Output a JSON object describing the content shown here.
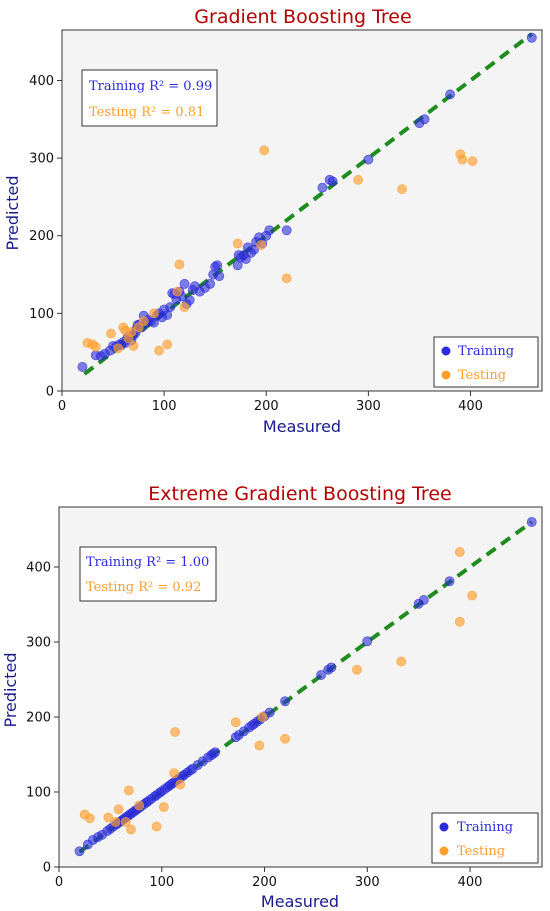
{
  "chart_data": [
    {
      "type": "scatter",
      "title": "Gradient Boosting Tree",
      "xlabel": "Measured",
      "ylabel": "Predicted",
      "xlim": [
        0,
        470
      ],
      "ylim": [
        0,
        465
      ],
      "xticks": [
        "0",
        "100",
        "200",
        "300",
        "400"
      ],
      "yticks": [
        "0",
        "100",
        "200",
        "300",
        "400"
      ],
      "grid": false,
      "legend_placement": "lower-right",
      "metrics": {
        "training": "Training R² = 0.99",
        "testing": "Testing R² = 0.81"
      },
      "legend": {
        "training": "Training",
        "testing": "Testing"
      },
      "colors": {
        "training": "#2b2bdb",
        "testing": "#ff9f2e",
        "fit_line": "#1e8c1e",
        "title": "#b30000"
      },
      "fit_line": [
        [
          22,
          22
        ],
        [
          460,
          460
        ]
      ],
      "series": [
        {
          "name": "Training",
          "points": [
            [
              20,
              31
            ],
            [
              33,
              46
            ],
            [
              38,
              45
            ],
            [
              42,
              48
            ],
            [
              47,
              52
            ],
            [
              50,
              58
            ],
            [
              53,
              57
            ],
            [
              56,
              60
            ],
            [
              58,
              59
            ],
            [
              60,
              63
            ],
            [
              62,
              62
            ],
            [
              64,
              68
            ],
            [
              65,
              70
            ],
            [
              68,
              65
            ],
            [
              70,
              72
            ],
            [
              72,
              75
            ],
            [
              73,
              80
            ],
            [
              74,
              85
            ],
            [
              76,
              86
            ],
            [
              78,
              82
            ],
            [
              80,
              97
            ],
            [
              83,
              88
            ],
            [
              85,
              92
            ],
            [
              87,
              90
            ],
            [
              90,
              88
            ],
            [
              93,
              97
            ],
            [
              95,
              100
            ],
            [
              98,
              95
            ],
            [
              100,
              105
            ],
            [
              103,
              98
            ],
            [
              106,
              108
            ],
            [
              108,
              126
            ],
            [
              110,
              125
            ],
            [
              112,
              118
            ],
            [
              115,
              128
            ],
            [
              117,
              122
            ],
            [
              120,
              138
            ],
            [
              122,
              112
            ],
            [
              125,
              117
            ],
            [
              128,
              130
            ],
            [
              130,
              135
            ],
            [
              135,
              128
            ],
            [
              140,
              133
            ],
            [
              145,
              138
            ],
            [
              148,
              150
            ],
            [
              150,
              160
            ],
            [
              152,
              162
            ],
            [
              154,
              148
            ],
            [
              172,
              162
            ],
            [
              173,
              175
            ],
            [
              175,
              172
            ],
            [
              178,
              175
            ],
            [
              180,
              170
            ],
            [
              182,
              185
            ],
            [
              185,
              178
            ],
            [
              188,
              182
            ],
            [
              190,
              192
            ],
            [
              193,
              198
            ],
            [
              196,
              190
            ],
            [
              200,
              200
            ],
            [
              203,
              207
            ],
            [
              220,
              207
            ],
            [
              255,
              262
            ],
            [
              262,
              272
            ],
            [
              265,
              270
            ],
            [
              300,
              298
            ],
            [
              350,
              345
            ],
            [
              355,
              350
            ],
            [
              380,
              382
            ],
            [
              460,
              455
            ]
          ]
        },
        {
          "name": "Testing",
          "points": [
            [
              25,
              62
            ],
            [
              30,
              60
            ],
            [
              33,
              57
            ],
            [
              48,
              74
            ],
            [
              55,
              55
            ],
            [
              60,
              82
            ],
            [
              62,
              78
            ],
            [
              65,
              68
            ],
            [
              68,
              76
            ],
            [
              70,
              58
            ],
            [
              75,
              82
            ],
            [
              80,
              90
            ],
            [
              90,
              100
            ],
            [
              95,
              52
            ],
            [
              103,
              60
            ],
            [
              113,
              128
            ],
            [
              115,
              163
            ],
            [
              120,
              108
            ],
            [
              172,
              190
            ],
            [
              195,
              188
            ],
            [
              198,
              310
            ],
            [
              220,
              145
            ],
            [
              290,
              272
            ],
            [
              333,
              260
            ],
            [
              390,
              305
            ],
            [
              392,
              298
            ],
            [
              402,
              296
            ]
          ]
        }
      ]
    },
    {
      "type": "scatter",
      "title": "Extreme Gradient Boosting Tree",
      "xlabel": "Measured",
      "ylabel": "Predicted",
      "xlim": [
        0,
        470
      ],
      "ylim": [
        0,
        480
      ],
      "xticks": [
        "0",
        "100",
        "200",
        "300",
        "400"
      ],
      "yticks": [
        "0",
        "100",
        "200",
        "300",
        "400"
      ],
      "grid": false,
      "legend_placement": "lower-right",
      "metrics": {
        "training": "Training R² = 1.00",
        "testing": "Testing R² = 0.92"
      },
      "legend": {
        "training": "Training",
        "testing": "Testing"
      },
      "colors": {
        "training": "#2b2bdb",
        "testing": "#ff9f2e",
        "fit_line": "#1e8c1e",
        "title": "#b30000"
      },
      "fit_line": [
        [
          20,
          20
        ],
        [
          460,
          460
        ]
      ],
      "series": [
        {
          "name": "Training",
          "points": [
            [
              20,
              21
            ],
            [
              28,
              30
            ],
            [
              33,
              36
            ],
            [
              38,
              40
            ],
            [
              42,
              43
            ],
            [
              47,
              48
            ],
            [
              50,
              51
            ],
            [
              53,
              54
            ],
            [
              56,
              57
            ],
            [
              58,
              59
            ],
            [
              60,
              61
            ],
            [
              62,
              63
            ],
            [
              64,
              65
            ],
            [
              66,
              67
            ],
            [
              68,
              69
            ],
            [
              70,
              71
            ],
            [
              72,
              73
            ],
            [
              74,
              75
            ],
            [
              76,
              77
            ],
            [
              78,
              79
            ],
            [
              80,
              81
            ],
            [
              83,
              84
            ],
            [
              85,
              86
            ],
            [
              87,
              88
            ],
            [
              90,
              91
            ],
            [
              93,
              94
            ],
            [
              95,
              96
            ],
            [
              98,
              99
            ],
            [
              100,
              101
            ],
            [
              103,
              104
            ],
            [
              106,
              107
            ],
            [
              108,
              109
            ],
            [
              110,
              111
            ],
            [
              112,
              113
            ],
            [
              115,
              116
            ],
            [
              117,
              118
            ],
            [
              120,
              121
            ],
            [
              122,
              123
            ],
            [
              125,
              126
            ],
            [
              128,
              129
            ],
            [
              130,
              131
            ],
            [
              135,
              136
            ],
            [
              140,
              141
            ],
            [
              145,
              146
            ],
            [
              148,
              149
            ],
            [
              150,
              151
            ],
            [
              152,
              153
            ],
            [
              172,
              173
            ],
            [
              175,
              176
            ],
            [
              180,
              181
            ],
            [
              185,
              186
            ],
            [
              188,
              189
            ],
            [
              190,
              191
            ],
            [
              193,
              194
            ],
            [
              196,
              197
            ],
            [
              200,
              201
            ],
            [
              205,
              206
            ],
            [
              220,
              221
            ],
            [
              255,
              256
            ],
            [
              262,
              263
            ],
            [
              265,
              266
            ],
            [
              300,
              301
            ],
            [
              350,
              351
            ],
            [
              355,
              356
            ],
            [
              380,
              381
            ],
            [
              460,
              460
            ]
          ]
        },
        {
          "name": "Testing",
          "points": [
            [
              25,
              70
            ],
            [
              30,
              65
            ],
            [
              48,
              66
            ],
            [
              55,
              60
            ],
            [
              58,
              77
            ],
            [
              65,
              60
            ],
            [
              68,
              102
            ],
            [
              70,
              50
            ],
            [
              78,
              82
            ],
            [
              95,
              54
            ],
            [
              102,
              80
            ],
            [
              112,
              125
            ],
            [
              113,
              180
            ],
            [
              118,
              110
            ],
            [
              172,
              193
            ],
            [
              195,
              162
            ],
            [
              198,
              200
            ],
            [
              220,
              171
            ],
            [
              290,
              263
            ],
            [
              333,
              274
            ],
            [
              390,
              420
            ],
            [
              390,
              327
            ],
            [
              402,
              362
            ]
          ]
        }
      ]
    }
  ]
}
